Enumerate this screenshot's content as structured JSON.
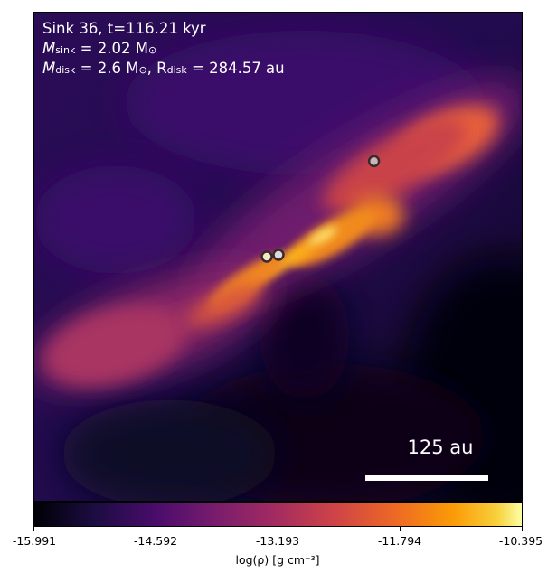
{
  "annotations": {
    "line1": "Sink 36, t=116.21 kyr",
    "line2_main": "M",
    "line2_sub": "sink",
    "line2_rest": " = 2.02 M",
    "line2_sun": "⊙",
    "line3_main": "M",
    "line3_sub": "disk",
    "line3_mid": " = 2.6 M",
    "line3_sun": "⊙",
    "line3_r": ", R",
    "line3_rsub": "disk",
    "line3_rest": " = 284.57 au"
  },
  "scalebar": {
    "label": "125 au"
  },
  "colorbar": {
    "ticks": [
      "-15.991",
      "-14.592",
      "-13.193",
      "-11.794",
      "-10.395"
    ],
    "label": "log(ρ) [g cm⁻³]",
    "colormap": "inferno"
  },
  "sinks": [
    {
      "name": "sink-upper-right"
    },
    {
      "name": "sink-center-left"
    },
    {
      "name": "sink-center-right"
    }
  ]
}
